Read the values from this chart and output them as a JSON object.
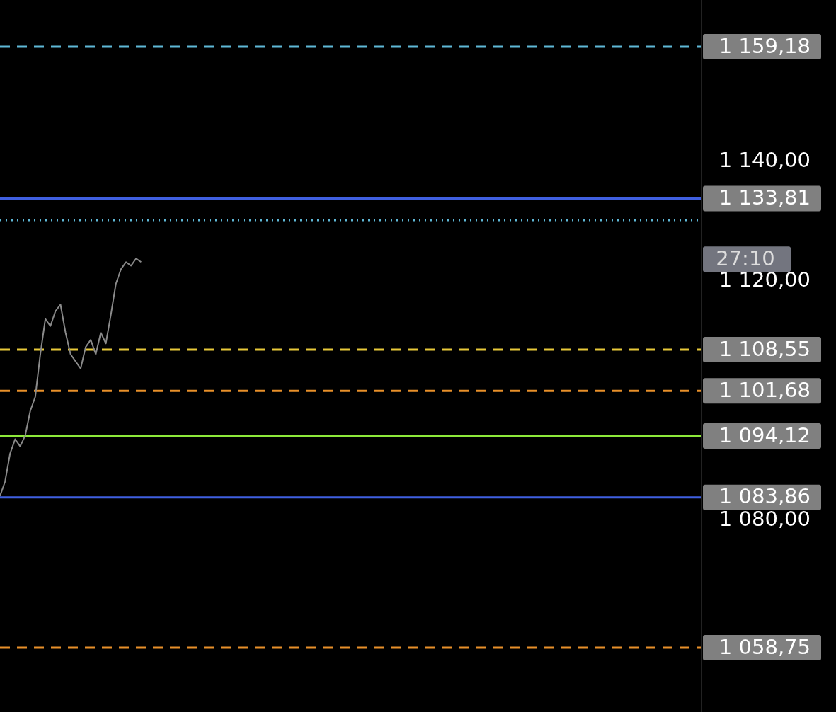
{
  "chart_data": {
    "type": "line",
    "categories": [
      null,
      null,
      null,
      null,
      null,
      null,
      null,
      null,
      null,
      null,
      null,
      null,
      null,
      null,
      null,
      null,
      null,
      null,
      null,
      null,
      null,
      null,
      null,
      null,
      null,
      null,
      null,
      null,
      null,
      null,
      null,
      null,
      null,
      null,
      null,
      null,
      null,
      null,
      null,
      null,
      null,
      null,
      null,
      null,
      null,
      null,
      null,
      null,
      null,
      null,
      null,
      null,
      null,
      null,
      null,
      null,
      null,
      null,
      null,
      null,
      null,
      null,
      null,
      null,
      null,
      null,
      null,
      null,
      null,
      null,
      null,
      null,
      null,
      null,
      null,
      null,
      null,
      null,
      null,
      null,
      null,
      null,
      null,
      null,
      null,
      null,
      null,
      null,
      null,
      null,
      null,
      null,
      null,
      null,
      null,
      null,
      null,
      null,
      null,
      null,
      null,
      null,
      null,
      null,
      null,
      null,
      null,
      null,
      null,
      null,
      null,
      null,
      null,
      null,
      null,
      null,
      null,
      null,
      null,
      null,
      null,
      null,
      null,
      null,
      null,
      null,
      null,
      null,
      null,
      null,
      null,
      null,
      null,
      null,
      null,
      null,
      null,
      null,
      null,
      null
    ],
    "series": [
      {
        "color": "#8a8a8a",
        "values": [
          1084.1,
          1086.5,
          1091.2,
          1093.6,
          1092.4,
          1094.2,
          1098.3,
          1100.7,
          1107.8,
          1113.7,
          1112.5,
          1115,
          1116.1,
          1111.4,
          1107.8,
          1106.6,
          1105.4,
          1109,
          1110.2,
          1107.8,
          1111.4,
          1109.6,
          1114.4,
          1119.6,
          1122,
          1123.2,
          1122.6,
          1123.8,
          1123.2,
          null,
          null,
          null,
          null,
          null,
          null,
          null,
          null,
          null,
          null,
          null,
          null,
          null,
          null,
          null,
          null,
          null,
          null,
          null,
          null,
          null,
          null,
          null,
          null,
          null,
          null,
          null,
          null,
          null,
          null,
          null,
          null,
          null,
          null,
          null,
          null,
          null,
          null,
          null,
          null,
          null,
          null,
          null,
          null,
          null,
          null,
          null,
          null,
          null,
          null,
          null,
          null,
          null,
          null,
          null,
          null,
          null,
          null,
          null,
          null,
          null,
          null,
          null,
          null,
          null,
          null,
          null,
          null,
          null,
          null,
          null,
          null,
          null,
          null,
          null,
          null,
          null,
          null,
          null,
          null,
          null,
          null,
          null,
          null,
          null,
          null,
          null,
          null,
          null,
          null,
          null,
          null,
          null,
          null,
          null,
          null,
          null,
          null,
          null,
          null,
          null,
          null,
          null,
          null,
          null,
          null,
          null,
          null,
          null,
          null,
          null
        ]
      }
    ],
    "ylim": [
      1048,
      1167
    ],
    "yticks": [
      {
        "value": 1140,
        "label": "1 140,00"
      },
      {
        "value": 1120,
        "label": "1 120,00"
      },
      {
        "value": 1080,
        "label": "1 080,00"
      }
    ],
    "tick_labels": "y",
    "legend": false,
    "marker": "none",
    "ref_lines": [
      {
        "axis": "y",
        "value": 1159.18,
        "label": "1 159,18",
        "color": "#5fb8d6",
        "line_style": "dashed"
      },
      {
        "axis": "y",
        "value": 1133.81,
        "label": "1 133,81",
        "color": "#3f5fe0",
        "line_style": "solid"
      },
      {
        "axis": "y",
        "value": 1130.2,
        "color": "#5fb8d6",
        "line_style": "dotted"
      },
      {
        "axis": "y",
        "value": 1108.55,
        "label": "1 108,55",
        "color": "#e8c93a",
        "line_style": "dashed"
      },
      {
        "axis": "y",
        "value": 1101.68,
        "label": "1 101,68",
        "color": "#e8902a",
        "line_style": "dashed"
      },
      {
        "axis": "y",
        "value": 1094.12,
        "label": "1 094,12",
        "color": "#8de83a",
        "line_style": "solid"
      },
      {
        "axis": "y",
        "value": 1083.86,
        "label": "1 083,86",
        "color": "#3f5fe0",
        "line_style": "solid"
      },
      {
        "axis": "y",
        "value": 1058.75,
        "label": "1 058,75",
        "color": "#e8902a",
        "line_style": "dashed"
      }
    ],
    "annotations": [
      "27:10"
    ]
  }
}
